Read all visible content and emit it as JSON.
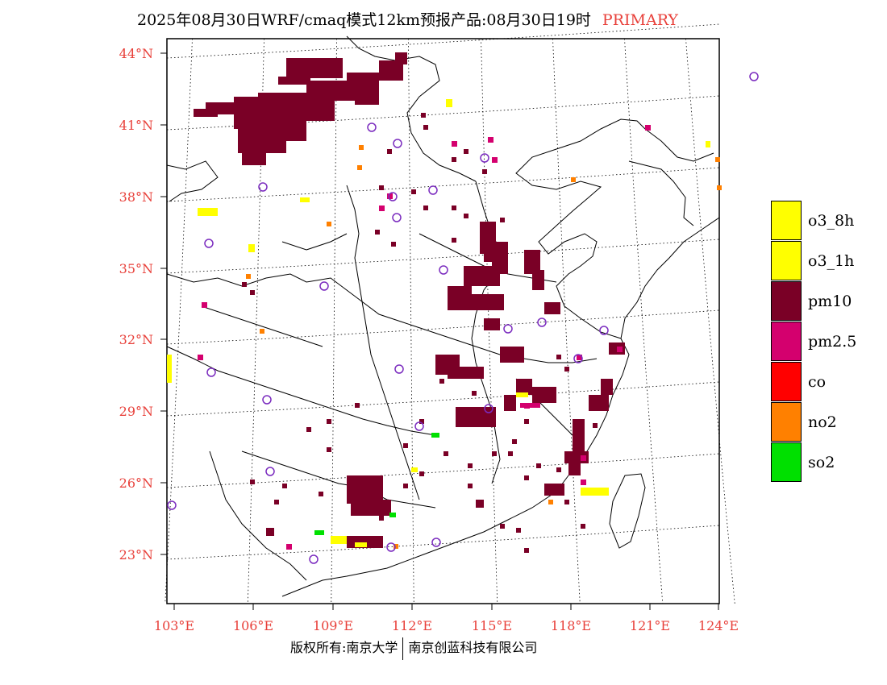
{
  "header": {
    "title": "2025年08月30日WRF/cmaq模式12km预报产品:08月30日19时",
    "badge": "PRIMARY"
  },
  "colors": {
    "accent": "#e8403a",
    "pm10": "#7a0026",
    "pm25": "#d4006e",
    "o3": "#ffff00",
    "co": "#ff0000",
    "no2": "#ff8000",
    "so2": "#00e000",
    "station": "#7b2cbf"
  },
  "axes": {
    "lat_labels": [
      "44°N",
      "41°N",
      "38°N",
      "35°N",
      "32°N",
      "29°N",
      "26°N",
      "23°N"
    ],
    "lon_labels": [
      "103°E",
      "106°E",
      "109°E",
      "112°E",
      "115°E",
      "118°E",
      "121°E",
      "124°E"
    ]
  },
  "legend": {
    "items": [
      {
        "label": "o3_8h",
        "color": "#ffff00"
      },
      {
        "label": "o3_1h",
        "color": "#ffff00"
      },
      {
        "label": "pm10",
        "color": "#7a0026"
      },
      {
        "label": "pm2.5",
        "color": "#d4006e"
      },
      {
        "label": "co",
        "color": "#ff0000"
      },
      {
        "label": "no2",
        "color": "#ff8000"
      },
      {
        "label": "so2",
        "color": "#00e000"
      }
    ]
  },
  "footer": {
    "left": "版权所有:南京大学",
    "right": "南京创蓝科技有限公司"
  }
}
